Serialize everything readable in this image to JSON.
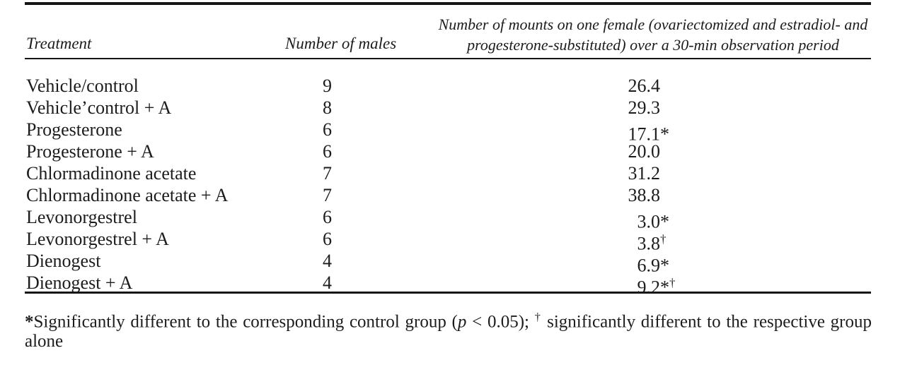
{
  "table": {
    "header": {
      "treatment": "Treatment",
      "males": "Number of males",
      "mounts_line1": "Number of mounts on one female (ovariectomized and estradiol- and",
      "mounts_line2": "progesterone-substituted) over a 30-min observation period"
    },
    "rows": [
      {
        "treatment": "Vehicle/control",
        "males": "9",
        "mounts": "26.4",
        "star": "",
        "dagger": ""
      },
      {
        "treatment": "Vehicle’control + A",
        "males": "8",
        "mounts": "29.3",
        "star": "",
        "dagger": ""
      },
      {
        "treatment": "Progesterone",
        "males": "6",
        "mounts": "17.1",
        "star": "*",
        "dagger": ""
      },
      {
        "treatment": "Progesterone + A",
        "males": "6",
        "mounts": "20.0",
        "star": "",
        "dagger": ""
      },
      {
        "treatment": "Chlormadinone acetate",
        "males": "7",
        "mounts": "31.2",
        "star": "",
        "dagger": ""
      },
      {
        "treatment": "Chlormadinone acetate + A",
        "males": "7",
        "mounts": "38.8",
        "star": "",
        "dagger": ""
      },
      {
        "treatment": "Levonorgestrel",
        "males": "6",
        "mounts": "3.0",
        "star": "*",
        "dagger": ""
      },
      {
        "treatment": "Levonorgestrel + A",
        "males": "6",
        "mounts": "3.8",
        "star": "",
        "dagger": "†"
      },
      {
        "treatment": "Dienogest",
        "males": "4",
        "mounts": "6.9",
        "star": "*",
        "dagger": ""
      },
      {
        "treatment": "Dienogest + A",
        "males": "4",
        "mounts": "9.2",
        "star": "*",
        "dagger": "†"
      }
    ]
  },
  "footnote": {
    "star": "*",
    "seg1": "Significantly different to the corresponding control group (",
    "p_italic": "p",
    "seg2": " < 0.05); ",
    "dagger": "†",
    "seg3": " significantly different to the respective group alone"
  }
}
